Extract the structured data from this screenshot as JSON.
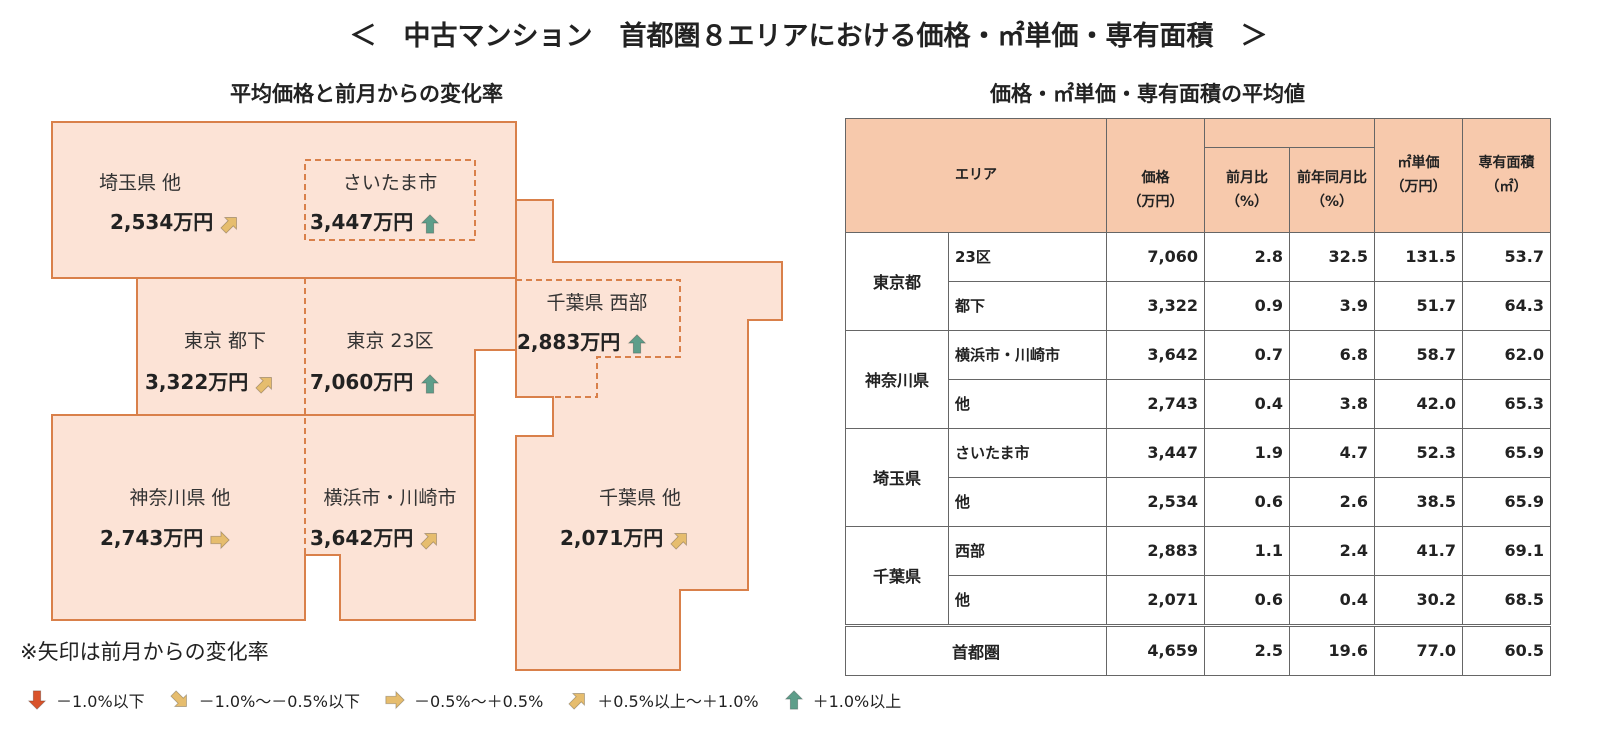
{
  "title": "＜　中古マンション　首都圏８エリアにおける価格・㎡単価・専有面積　＞",
  "map_title": "平均価格と前月からの変化率",
  "table_title": "価格・㎡単価・専有面積の平均値",
  "note": "※矢印は前月からの変化率",
  "colors": {
    "region_fill": "#fce3d6",
    "region_stroke": "#d9804a",
    "header_fill": "#f7c9ac",
    "down": "#d9532b",
    "slight_down": "#e6bd6e",
    "flat": "#e6bd6e",
    "slight_up": "#e6bd6e",
    "up": "#5e9e8a"
  },
  "map": [
    {
      "name": "埼玉県 他",
      "price": "2,534万円",
      "trend": "slight_up"
    },
    {
      "name": "さいたま市",
      "price": "3,447万円",
      "trend": "up"
    },
    {
      "name": "東京 都下",
      "price": "3,322万円",
      "trend": "slight_up"
    },
    {
      "name": "東京 23区",
      "price": "7,060万円",
      "trend": "up"
    },
    {
      "name": "千葉県 西部",
      "price": "2,883万円",
      "trend": "up"
    },
    {
      "name": "神奈川県 他",
      "price": "2,743万円",
      "trend": "flat"
    },
    {
      "name": "横浜市・川崎市",
      "price": "3,642万円",
      "trend": "slight_up"
    },
    {
      "name": "千葉県 他",
      "price": "2,071万円",
      "trend": "slight_up"
    }
  ],
  "table": {
    "headers": {
      "area": "エリア",
      "price": "価格",
      "price_unit": "（万円）",
      "mom": "前月比",
      "mom_unit": "（%）",
      "yoy": "前年同月比",
      "yoy_unit": "（%）",
      "unit_price": "㎡単価",
      "unit_price_unit": "（万円）",
      "area_size": "専有面積",
      "area_size_unit": "（㎡）"
    },
    "groups": [
      {
        "pref": "東京都",
        "rows": [
          [
            "23区",
            "7,060",
            "2.8",
            "32.5",
            "131.5",
            "53.7"
          ],
          [
            "都下",
            "3,322",
            "0.9",
            "3.9",
            "51.7",
            "64.3"
          ]
        ]
      },
      {
        "pref": "神奈川県",
        "rows": [
          [
            "横浜市・川崎市",
            "3,642",
            "0.7",
            "6.8",
            "58.7",
            "62.0"
          ],
          [
            "他",
            "2,743",
            "0.4",
            "3.8",
            "42.0",
            "65.3"
          ]
        ]
      },
      {
        "pref": "埼玉県",
        "rows": [
          [
            "さいたま市",
            "3,447",
            "1.9",
            "4.7",
            "52.3",
            "65.9"
          ],
          [
            "他",
            "2,534",
            "0.6",
            "2.6",
            "38.5",
            "65.9"
          ]
        ]
      },
      {
        "pref": "千葉県",
        "rows": [
          [
            "西部",
            "2,883",
            "1.1",
            "2.4",
            "41.7",
            "69.1"
          ],
          [
            "他",
            "2,071",
            "0.6",
            "0.4",
            "30.2",
            "68.5"
          ]
        ]
      }
    ],
    "total": [
      "首都圏",
      "4,659",
      "2.5",
      "19.6",
      "77.0",
      "60.5"
    ]
  },
  "legend": [
    {
      "trend": "down",
      "label": "－1.0%以下"
    },
    {
      "trend": "slight_down",
      "label": "－1.0%～－0.5%以下"
    },
    {
      "trend": "flat",
      "label": "－0.5%～＋0.5%"
    },
    {
      "trend": "slight_up",
      "label": "＋0.5%以上～＋1.0%"
    },
    {
      "trend": "up",
      "label": "＋1.0%以上"
    }
  ]
}
